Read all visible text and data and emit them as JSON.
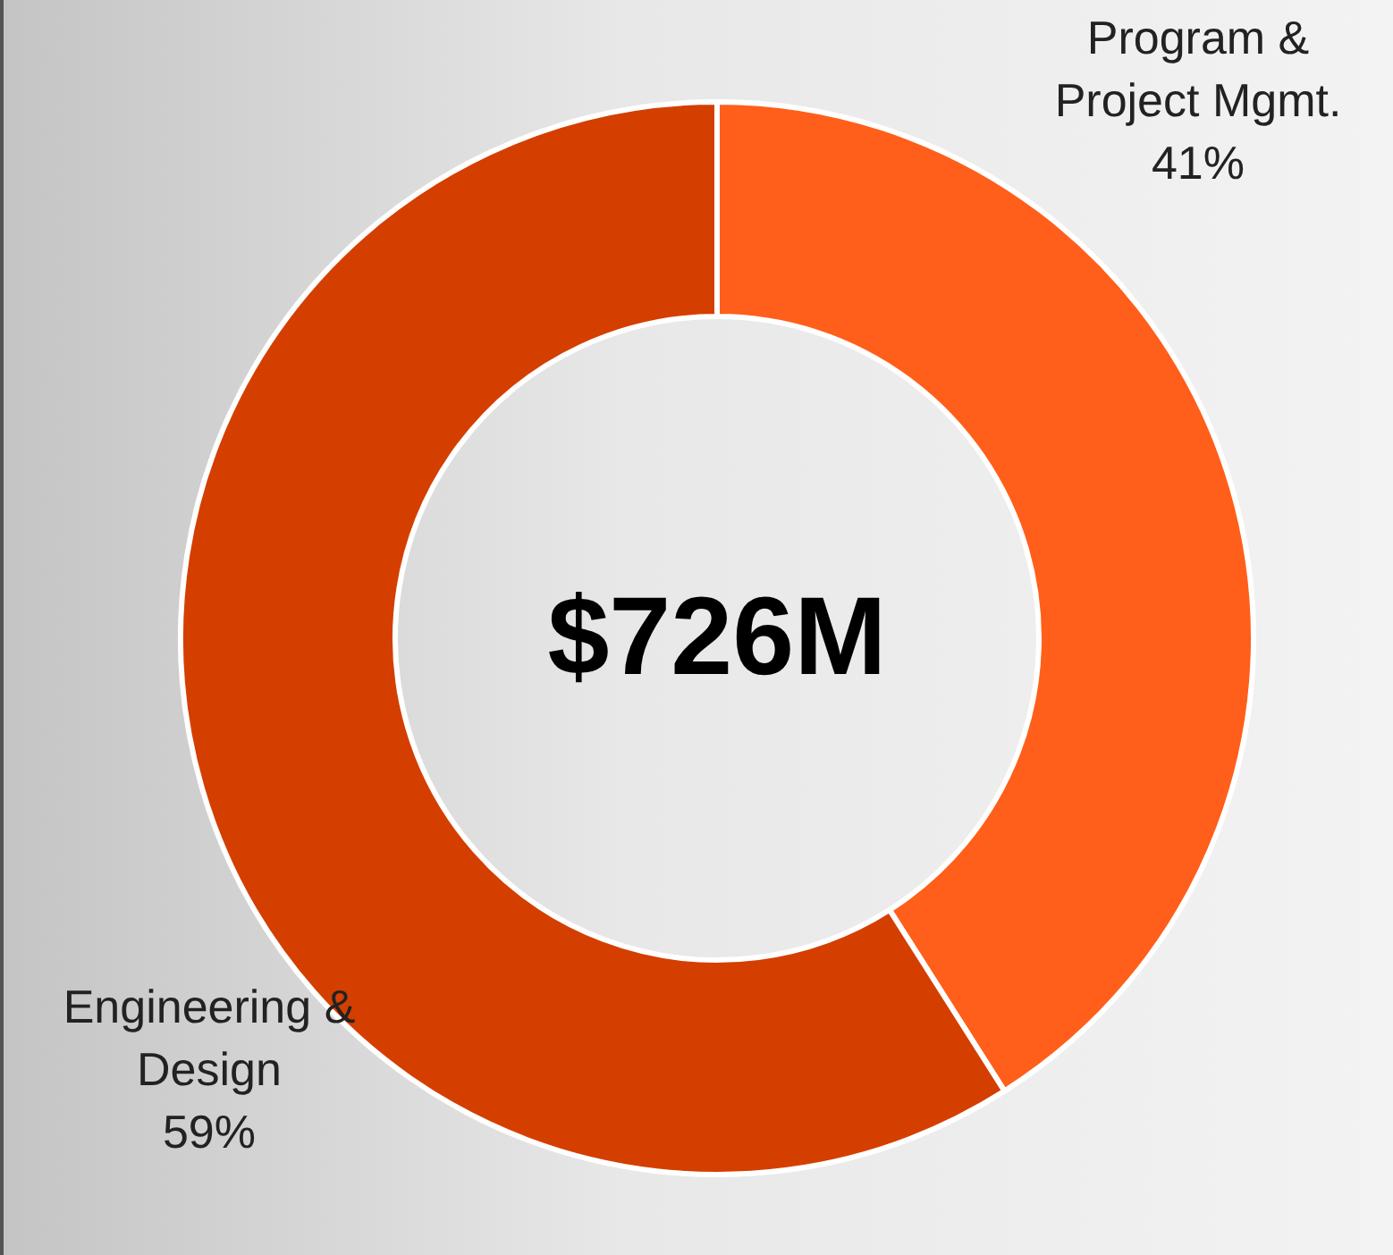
{
  "chart_data": {
    "type": "donut",
    "categories": [
      "Program & Project Mgmt.",
      "Engineering & Design"
    ],
    "values": [
      41,
      59
    ],
    "value_labels": [
      "41%",
      "59%"
    ],
    "colors": [
      "#ff5f1a",
      "#d43f00"
    ],
    "annotations": [
      "$726M"
    ],
    "legend": false
  }
}
